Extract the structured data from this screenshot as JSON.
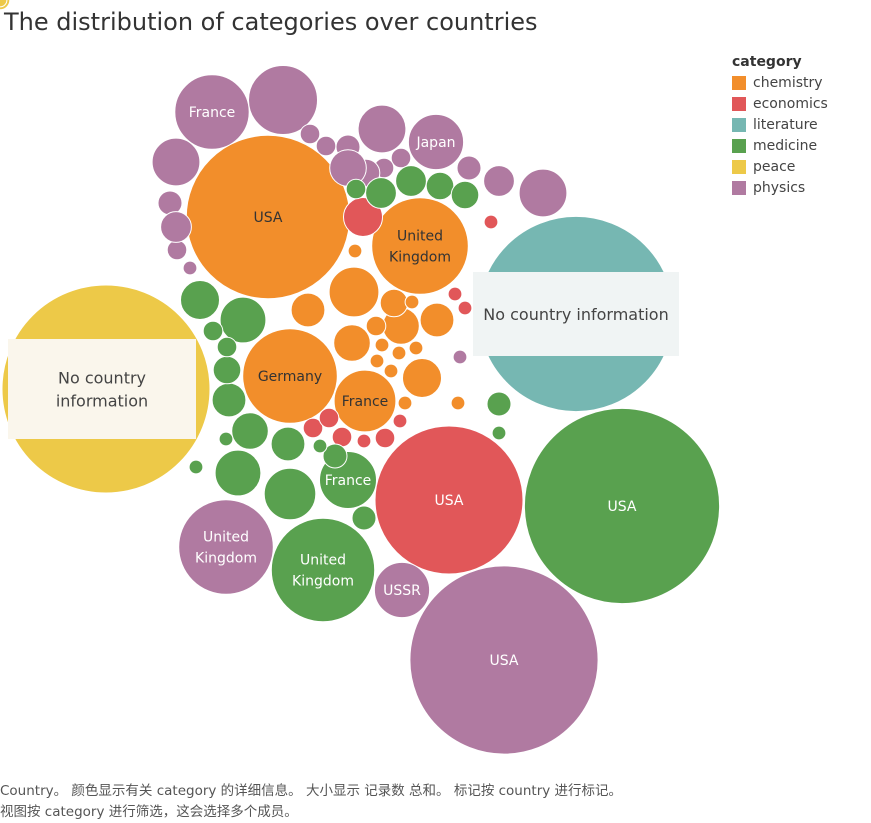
{
  "title": "The distribution of categories over countries",
  "legend": {
    "title": "category",
    "items": [
      {
        "label": "chemistry",
        "color": "#f28e2b"
      },
      {
        "label": "economics",
        "color": "#e15759"
      },
      {
        "label": "literature",
        "color": "#76b7b2"
      },
      {
        "label": "medicine",
        "color": "#59a14f"
      },
      {
        "label": "peace",
        "color": "#edc948"
      },
      {
        "label": "physics",
        "color": "#b07aa1"
      }
    ]
  },
  "caption": {
    "line1": "Country。 颜色显示有关 category 的详细信息。 大小显示 记录数 总和。 标记按 country 进行标记。",
    "line2": "视图按 category 进行筛选，这会选择多个成员。"
  },
  "chart_data": {
    "type": "packed-bubble",
    "size_measure": "记录数 总和",
    "color_measure": "category",
    "label_measure": "country",
    "bubbles": [
      {
        "category": "physics",
        "label": "USA",
        "value": 186
      },
      {
        "category": "peace",
        "label": "No country information",
        "value": 227
      },
      {
        "category": "literature",
        "label": "No country information",
        "value": 200
      },
      {
        "category": "medicine",
        "label": "USA",
        "value": 200
      },
      {
        "category": "chemistry",
        "label": "USA",
        "value": 140
      },
      {
        "category": "economics",
        "label": "USA",
        "value": 115
      },
      {
        "category": "medicine",
        "label": "United Kingdom",
        "value": 56
      },
      {
        "category": "physics",
        "label": "United Kingdom",
        "value": 47
      },
      {
        "category": "chemistry",
        "label": "Germany",
        "value": 47
      },
      {
        "category": "chemistry",
        "label": "United Kingdom",
        "value": 49
      },
      {
        "category": "physics",
        "label": "France",
        "value": 29
      },
      {
        "category": "medicine",
        "label": "France",
        "value": 17
      },
      {
        "category": "chemistry",
        "label": "France",
        "value": 20
      },
      {
        "category": "physics",
        "label": "Japan",
        "value": 16
      },
      {
        "category": "physics",
        "label": "USSR",
        "value": 16
      },
      {
        "category": "physics",
        "label": "",
        "value": 25
      },
      {
        "category": "physics",
        "label": "",
        "value": 12
      },
      {
        "category": "physics",
        "label": "",
        "value": 12
      },
      {
        "category": "physics",
        "label": "",
        "value": 12
      },
      {
        "category": "physics",
        "label": "",
        "value": 5
      },
      {
        "category": "physics",
        "label": "",
        "value": 3
      },
      {
        "category": "physics",
        "label": "",
        "value": 3
      },
      {
        "category": "physics",
        "label": "",
        "value": 3
      },
      {
        "category": "physics",
        "label": "",
        "value": 2
      },
      {
        "category": "physics",
        "label": "",
        "value": 2
      },
      {
        "category": "physics",
        "label": "",
        "value": 2
      },
      {
        "category": "physics",
        "label": "",
        "value": 2
      },
      {
        "category": "physics",
        "label": "",
        "value": 2
      },
      {
        "category": "physics",
        "label": "",
        "value": 4
      },
      {
        "category": "physics",
        "label": "",
        "value": 7
      },
      {
        "category": "physics",
        "label": "",
        "value": 5
      },
      {
        "category": "physics",
        "label": "",
        "value": 1
      },
      {
        "category": "physics",
        "label": "",
        "value": 1
      },
      {
        "category": "chemistry",
        "label": "",
        "value": 13
      },
      {
        "category": "chemistry",
        "label": "",
        "value": 6
      },
      {
        "category": "chemistry",
        "label": "",
        "value": 8
      },
      {
        "category": "chemistry",
        "label": "",
        "value": 7
      },
      {
        "category": "chemistry",
        "label": "",
        "value": 7
      },
      {
        "category": "chemistry",
        "label": "",
        "value": 6
      },
      {
        "category": "chemistry",
        "label": "",
        "value": 4
      },
      {
        "category": "chemistry",
        "label": "",
        "value": 2
      },
      {
        "category": "chemistry",
        "label": "",
        "value": 1
      },
      {
        "category": "chemistry",
        "label": "",
        "value": 1
      },
      {
        "category": "chemistry",
        "label": "",
        "value": 1
      },
      {
        "category": "chemistry",
        "label": "",
        "value": 1
      },
      {
        "category": "chemistry",
        "label": "",
        "value": 1
      },
      {
        "category": "chemistry",
        "label": "",
        "value": 1
      },
      {
        "category": "chemistry",
        "label": "",
        "value": 1
      },
      {
        "category": "chemistry",
        "label": "",
        "value": 1
      },
      {
        "category": "chemistry",
        "label": "",
        "value": 1
      },
      {
        "category": "economics",
        "label": "",
        "value": 8
      },
      {
        "category": "economics",
        "label": "",
        "value": 2
      },
      {
        "category": "economics",
        "label": "",
        "value": 2
      },
      {
        "category": "economics",
        "label": "",
        "value": 2
      },
      {
        "category": "economics",
        "label": "",
        "value": 2
      },
      {
        "category": "economics",
        "label": "",
        "value": 1
      },
      {
        "category": "economics",
        "label": "",
        "value": 1
      },
      {
        "category": "economics",
        "label": "",
        "value": 1
      },
      {
        "category": "economics",
        "label": "",
        "value": 1
      },
      {
        "category": "economics",
        "label": "",
        "value": 1
      },
      {
        "category": "medicine",
        "label": "",
        "value": 11
      },
      {
        "category": "medicine",
        "label": "",
        "value": 14
      },
      {
        "category": "medicine",
        "label": "",
        "value": 11
      },
      {
        "category": "medicine",
        "label": "",
        "value": 8
      },
      {
        "category": "medicine",
        "label": "",
        "value": 7
      },
      {
        "category": "medicine",
        "label": "",
        "value": 6
      },
      {
        "category": "medicine",
        "label": "",
        "value": 6
      },
      {
        "category": "medicine",
        "label": "",
        "value": 5
      },
      {
        "category": "medicine",
        "label": "",
        "value": 5
      },
      {
        "category": "medicine",
        "label": "",
        "value": 4
      },
      {
        "category": "medicine",
        "label": "",
        "value": 4
      },
      {
        "category": "medicine",
        "label": "",
        "value": 4
      },
      {
        "category": "medicine",
        "label": "",
        "value": 3
      },
      {
        "category": "medicine",
        "label": "",
        "value": 3
      },
      {
        "category": "medicine",
        "label": "",
        "value": 3
      },
      {
        "category": "medicine",
        "label": "",
        "value": 2
      },
      {
        "category": "medicine",
        "label": "",
        "value": 2
      },
      {
        "category": "medicine",
        "label": "",
        "value": 2
      },
      {
        "category": "medicine",
        "label": "",
        "value": 1
      },
      {
        "category": "medicine",
        "label": "",
        "value": 1
      },
      {
        "category": "medicine",
        "label": "",
        "value": 1
      },
      {
        "category": "medicine",
        "label": "",
        "value": 1
      },
      {
        "category": "peace",
        "label": "",
        "value": 2
      },
      {
        "category": "peace",
        "label": "",
        "value": 1
      }
    ]
  }
}
